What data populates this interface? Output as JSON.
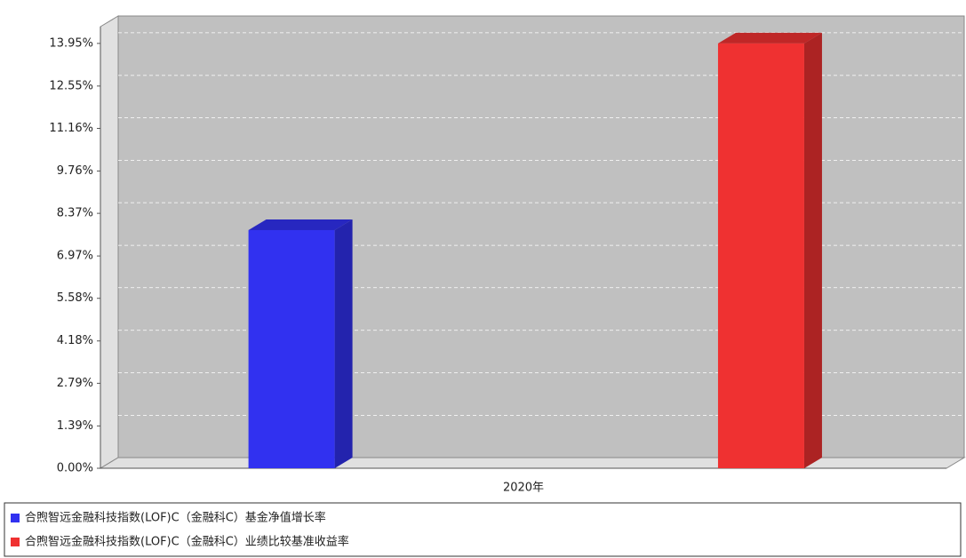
{
  "chart_data": {
    "type": "bar3d",
    "categories": [
      "2020年"
    ],
    "series": [
      {
        "name": "合煦智远金融科技指数(LOF)C（金融科C）基金净值增长率",
        "color": "#3131f0",
        "values": [
          7.82
        ]
      },
      {
        "name": "合煦智远金融科技指数(LOF)C（金融科C）业绩比较基准收益率",
        "color": "#ef3131",
        "values": [
          13.95
        ]
      }
    ],
    "ylim": [
      0,
      14.5
    ],
    "yticks": [
      {
        "value": 0,
        "label": "0.00%"
      },
      {
        "value": 1.39,
        "label": "1.39%"
      },
      {
        "value": 2.79,
        "label": "2.79%"
      },
      {
        "value": 4.18,
        "label": "4.18%"
      },
      {
        "value": 5.58,
        "label": "5.58%"
      },
      {
        "value": 6.97,
        "label": "6.97%"
      },
      {
        "value": 8.37,
        "label": "8.37%"
      },
      {
        "value": 9.76,
        "label": "9.76%"
      },
      {
        "value": 11.16,
        "label": "11.16%"
      },
      {
        "value": 12.55,
        "label": "12.55%"
      },
      {
        "value": 13.95,
        "label": "13.95%"
      }
    ],
    "grid": true
  }
}
